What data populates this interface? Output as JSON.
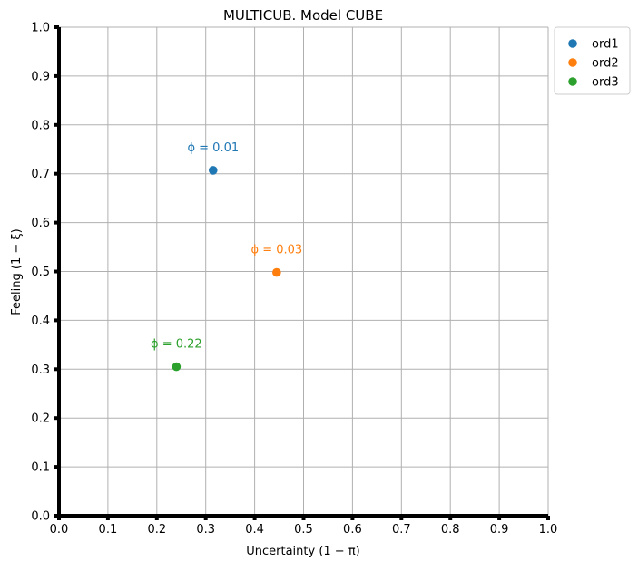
{
  "chart_data": {
    "type": "scatter",
    "title": "MULTICUB. Model CUBE",
    "xlabel": "Uncertainty (1 − π)",
    "ylabel": "Feeling (1 − ξ)",
    "xlim": [
      0.0,
      1.0
    ],
    "ylim": [
      0.0,
      1.0
    ],
    "xticks": [
      "0.0",
      "0.1",
      "0.2",
      "0.3",
      "0.4",
      "0.5",
      "0.6",
      "0.7",
      "0.8",
      "0.9",
      "1.0"
    ],
    "yticks": [
      "0.0",
      "0.1",
      "0.2",
      "0.3",
      "0.4",
      "0.5",
      "0.6",
      "0.7",
      "0.8",
      "0.9",
      "1.0"
    ],
    "grid": true,
    "legend_position": "outside-top-right",
    "series": [
      {
        "name": "ord1",
        "color": "#1f77b4",
        "x": 0.315,
        "y": 0.707,
        "annotation": "ϕ = 0.01"
      },
      {
        "name": "ord2",
        "color": "#ff7f0e",
        "x": 0.445,
        "y": 0.498,
        "annotation": "ϕ = 0.03"
      },
      {
        "name": "ord3",
        "color": "#2ca02c",
        "x": 0.24,
        "y": 0.305,
        "annotation": "ϕ = 0.22"
      }
    ]
  }
}
